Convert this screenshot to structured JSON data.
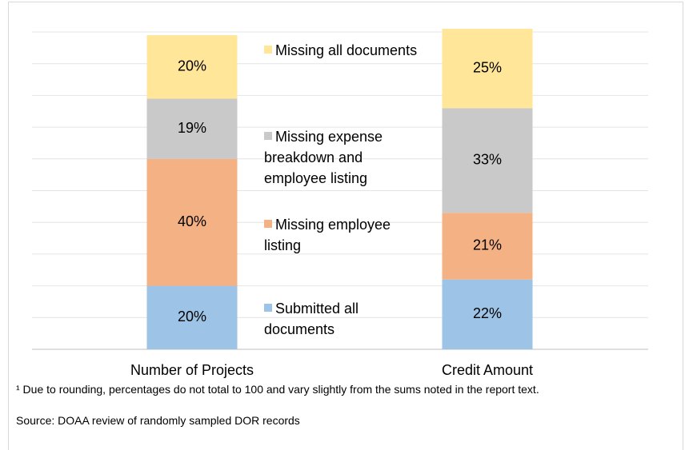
{
  "chart_data": {
    "type": "stacked_bar",
    "categories": [
      "Number of Projects",
      "Credit Amount"
    ],
    "series": [
      {
        "name": "Submitted all documents",
        "color": "#9dc3e6",
        "values": [
          20,
          22
        ],
        "value_labels": [
          "20%",
          "22%"
        ]
      },
      {
        "name": "Missing employee listing",
        "color": "#f4b183",
        "values": [
          40,
          21
        ],
        "value_labels": [
          "40%",
          "21%"
        ]
      },
      {
        "name": "Missing expense breakdown and employee listing",
        "color": "#c9c9c9",
        "values": [
          19,
          33
        ],
        "value_labels": [
          "19%",
          "33%"
        ]
      },
      {
        "name": "Missing all documents",
        "color": "#ffe699",
        "values": [
          20,
          25
        ],
        "value_labels": [
          "20%",
          "25%"
        ]
      }
    ],
    "ylim": [
      0,
      100
    ],
    "yticks": [
      0,
      10,
      20,
      30,
      40,
      50,
      60,
      70,
      80,
      90,
      100
    ],
    "ytick_labels": false,
    "grid": true,
    "footnote": "¹ Due to rounding, percentages do not total to 100 and vary slightly from the sums noted in the report text.",
    "source": "Source: DOAA review of randomly sampled DOR records"
  }
}
